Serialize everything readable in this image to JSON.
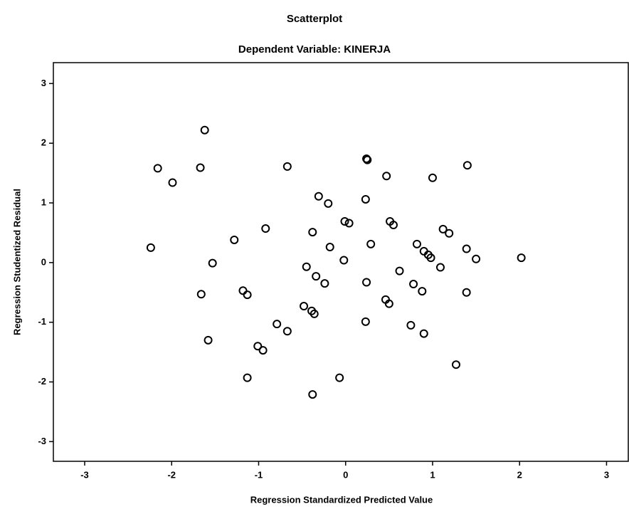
{
  "chart_data": {
    "type": "scatter",
    "title": "Scatterplot",
    "subtitle": "Dependent Variable: KINERJA",
    "x_label": "Regression Standardized Predicted Value",
    "y_label": "Regression Studentized Residual",
    "xlim": [
      -3.36,
      3.25
    ],
    "ylim": [
      -3.33,
      3.35
    ],
    "xticks": [
      -3,
      -2,
      -1,
      0,
      1,
      2,
      3
    ],
    "yticks": [
      -3,
      -2,
      -1,
      0,
      1,
      2,
      3
    ],
    "color": "#000000",
    "x": [
      -1.62,
      -2.16,
      -1.67,
      -1.99,
      -0.67,
      0.24,
      0.25,
      0.47,
      1.0,
      1.4,
      -0.31,
      -0.2,
      0.23,
      -0.92,
      -1.28,
      -2.24,
      -0.38,
      -0.01,
      0.04,
      0.51,
      0.55,
      -0.18,
      0.29,
      1.12,
      1.19,
      0.82,
      0.9,
      0.95,
      0.98,
      1.39,
      1.5,
      2.02,
      -1.53,
      -0.45,
      -0.02,
      0.62,
      1.09,
      -0.34,
      -0.24,
      0.24,
      -1.66,
      -1.18,
      -1.13,
      0.78,
      0.88,
      1.39,
      0.46,
      0.5,
      -0.48,
      -0.39,
      -0.36,
      -0.79,
      -0.67,
      0.23,
      0.75,
      0.9,
      -1.58,
      -1.01,
      -0.95,
      -1.13,
      -0.07,
      1.27,
      -0.38
    ],
    "values": [
      2.22,
      1.58,
      1.59,
      1.34,
      1.61,
      1.74,
      1.72,
      1.45,
      1.42,
      1.63,
      1.11,
      0.99,
      1.06,
      0.57,
      0.38,
      0.25,
      0.51,
      0.69,
      0.66,
      0.69,
      0.63,
      0.26,
      0.31,
      0.56,
      0.49,
      0.31,
      0.19,
      0.13,
      0.08,
      0.23,
      0.06,
      0.08,
      -0.01,
      -0.07,
      0.04,
      -0.14,
      -0.08,
      -0.23,
      -0.35,
      -0.33,
      -0.53,
      -0.47,
      -0.54,
      -0.36,
      -0.48,
      -0.5,
      -0.62,
      -0.69,
      -0.73,
      -0.81,
      -0.86,
      -1.03,
      -1.15,
      -0.99,
      -1.05,
      -1.19,
      -1.3,
      -1.4,
      -1.47,
      -1.93,
      -1.93,
      -1.71,
      -2.21
    ]
  }
}
